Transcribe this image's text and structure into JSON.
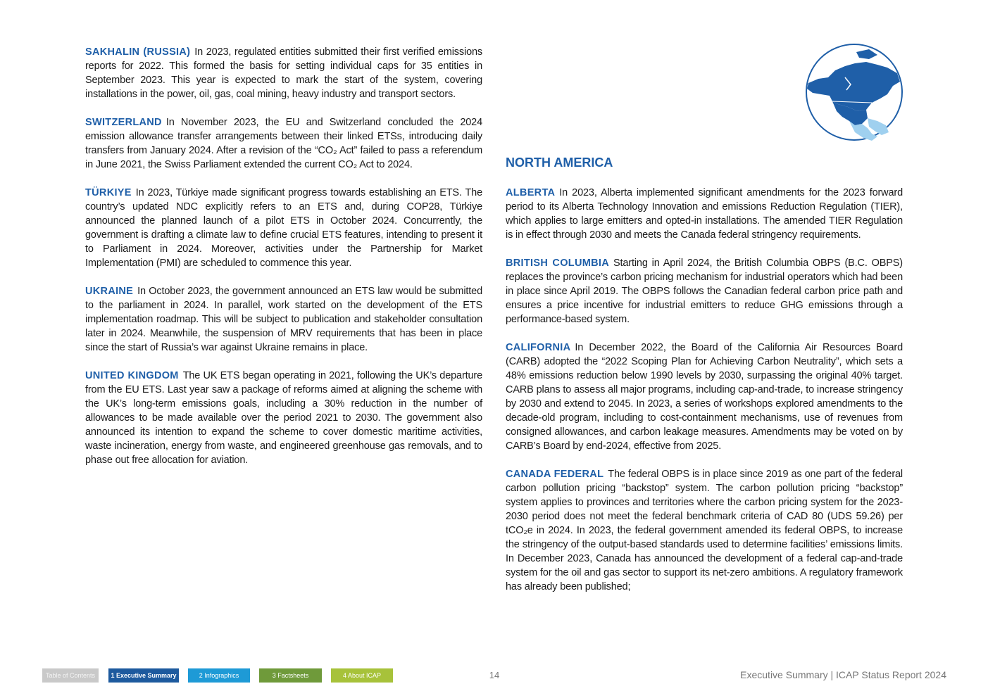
{
  "left_column": {
    "entries": [
      {
        "heading": "SAKHALIN (RUSSIA)",
        "text": "In 2023, regulated entities submitted their first verified emissions reports for 2022. This formed the basis for setting individual caps for 35 entities in September 2023. This year is expected to mark the start of the system, covering installations in the power, oil, gas, coal mining, heavy industry and transport sectors."
      },
      {
        "heading": "SWITZERLAND",
        "text": "In November 2023, the EU and Switzerland concluded the 2024 emission allowance transfer arrangements between their linked ETSs, introducing daily transfers from January 2024. After a revision of the “CO₂ Act” failed to pass a referendum in June 2021, the Swiss Parliament extended the current CO₂ Act to 2024."
      },
      {
        "heading": "TÜRKIYE",
        "text": "In 2023, Türkiye made significant progress towards establishing an ETS. The country’s updated NDC explicitly refers to an ETS and, during COP28, Türkiye announced the planned launch of a pilot ETS in October 2024. Concurrently, the government is drafting a climate law to define crucial ETS features, intending to present it to Parliament in 2024. Moreover, activities under the Partnership for Market Implementation (PMI) are scheduled to commence this year."
      },
      {
        "heading": "UKRAINE",
        "text": "In October 2023, the government announced an ETS law would be submitted to the parliament in 2024. In parallel, work started on the development of the ETS implementation roadmap. This will be subject to publication and stakeholder consultation later in 2024. Meanwhile, the suspension of MRV requirements that has been in place since the start of Russia’s war against Ukraine remains in place."
      },
      {
        "heading": "UNITED KINGDOM",
        "text": "The UK ETS began operating in 2021, following the UK’s departure from the EU ETS. Last year saw a package of reforms aimed at aligning the scheme with the UK’s long-term emissions goals, including a 30% reduction in the number of allowances to be made available over the period 2021 to 2030. The government also announced its intention to expand the scheme to cover domestic maritime activities, waste incineration, energy from waste, and engineered greenhouse gas removals, and to phase out free allocation for aviation."
      }
    ]
  },
  "right_column": {
    "region": "NORTH AMERICA",
    "entries": [
      {
        "heading": "ALBERTA",
        "text": "In 2023, Alberta implemented significant amendments for the 2023 forward period to its Alberta Technology Innovation and emissions Reduction Regulation (TIER), which applies to large emitters and opted-in installations. The amended TIER Regulation is in effect through 2030 and meets the Canada federal stringency requirements."
      },
      {
        "heading": "BRITISH COLUMBIA",
        "text": "Starting in April 2024, the British Columbia OBPS (B.C. OBPS) replaces the province’s carbon pricing mechanism for industrial operators which had been in place since April 2019. The OBPS follows the Canadian federal carbon price path and ensures a price incentive for industrial emitters to reduce GHG emissions through a performance-based system."
      },
      {
        "heading": "CALIFORNIA",
        "text": "In December 2022, the Board of the California Air Resources Board (CARB) adopted the “2022 Scoping Plan for Achieving Carbon Neutrality”, which sets a 48% emissions reduction below 1990 levels by 2030, surpassing the original 40% target. CARB plans to assess all major programs, including cap-and-trade, to increase stringency by 2030 and extend to 2045. In 2023, a series of workshops explored amendments to the decade-old program, including to cost-containment mechanisms, use of revenues from consigned allowances, and carbon leakage measures. Amendments may be voted on by CARB’s Board by end-2024, effective from 2025."
      },
      {
        "heading": "CANADA FEDERAL",
        "text": "The federal OBPS is in place since 2019 as one part of the federal carbon pollution pricing “backstop” system. The carbon pollution pricing “backstop” system applies to provinces and territories where the carbon pricing system for the 2023-2030 period does not meet the federal benchmark criteria of CAD 80 (UDS 59.26) per tCO₂e in 2024. In 2023, the federal government amended its federal OBPS, to increase the stringency of the output-based standards used to determine facilities’ emissions limits. In December 2023, Canada has announced the development of a federal cap-and-trade system for the oil and gas sector to support its net-zero ambitions. A regulatory framework has already been published;"
      }
    ]
  },
  "footer": {
    "nav": [
      "Table of Contents",
      "1 Executive Summary",
      "2 Infographics",
      "3 Factsheets",
      "4 About ICAP"
    ],
    "page_number": "14",
    "title": "Executive Summary | ICAP Status Report 2024"
  }
}
